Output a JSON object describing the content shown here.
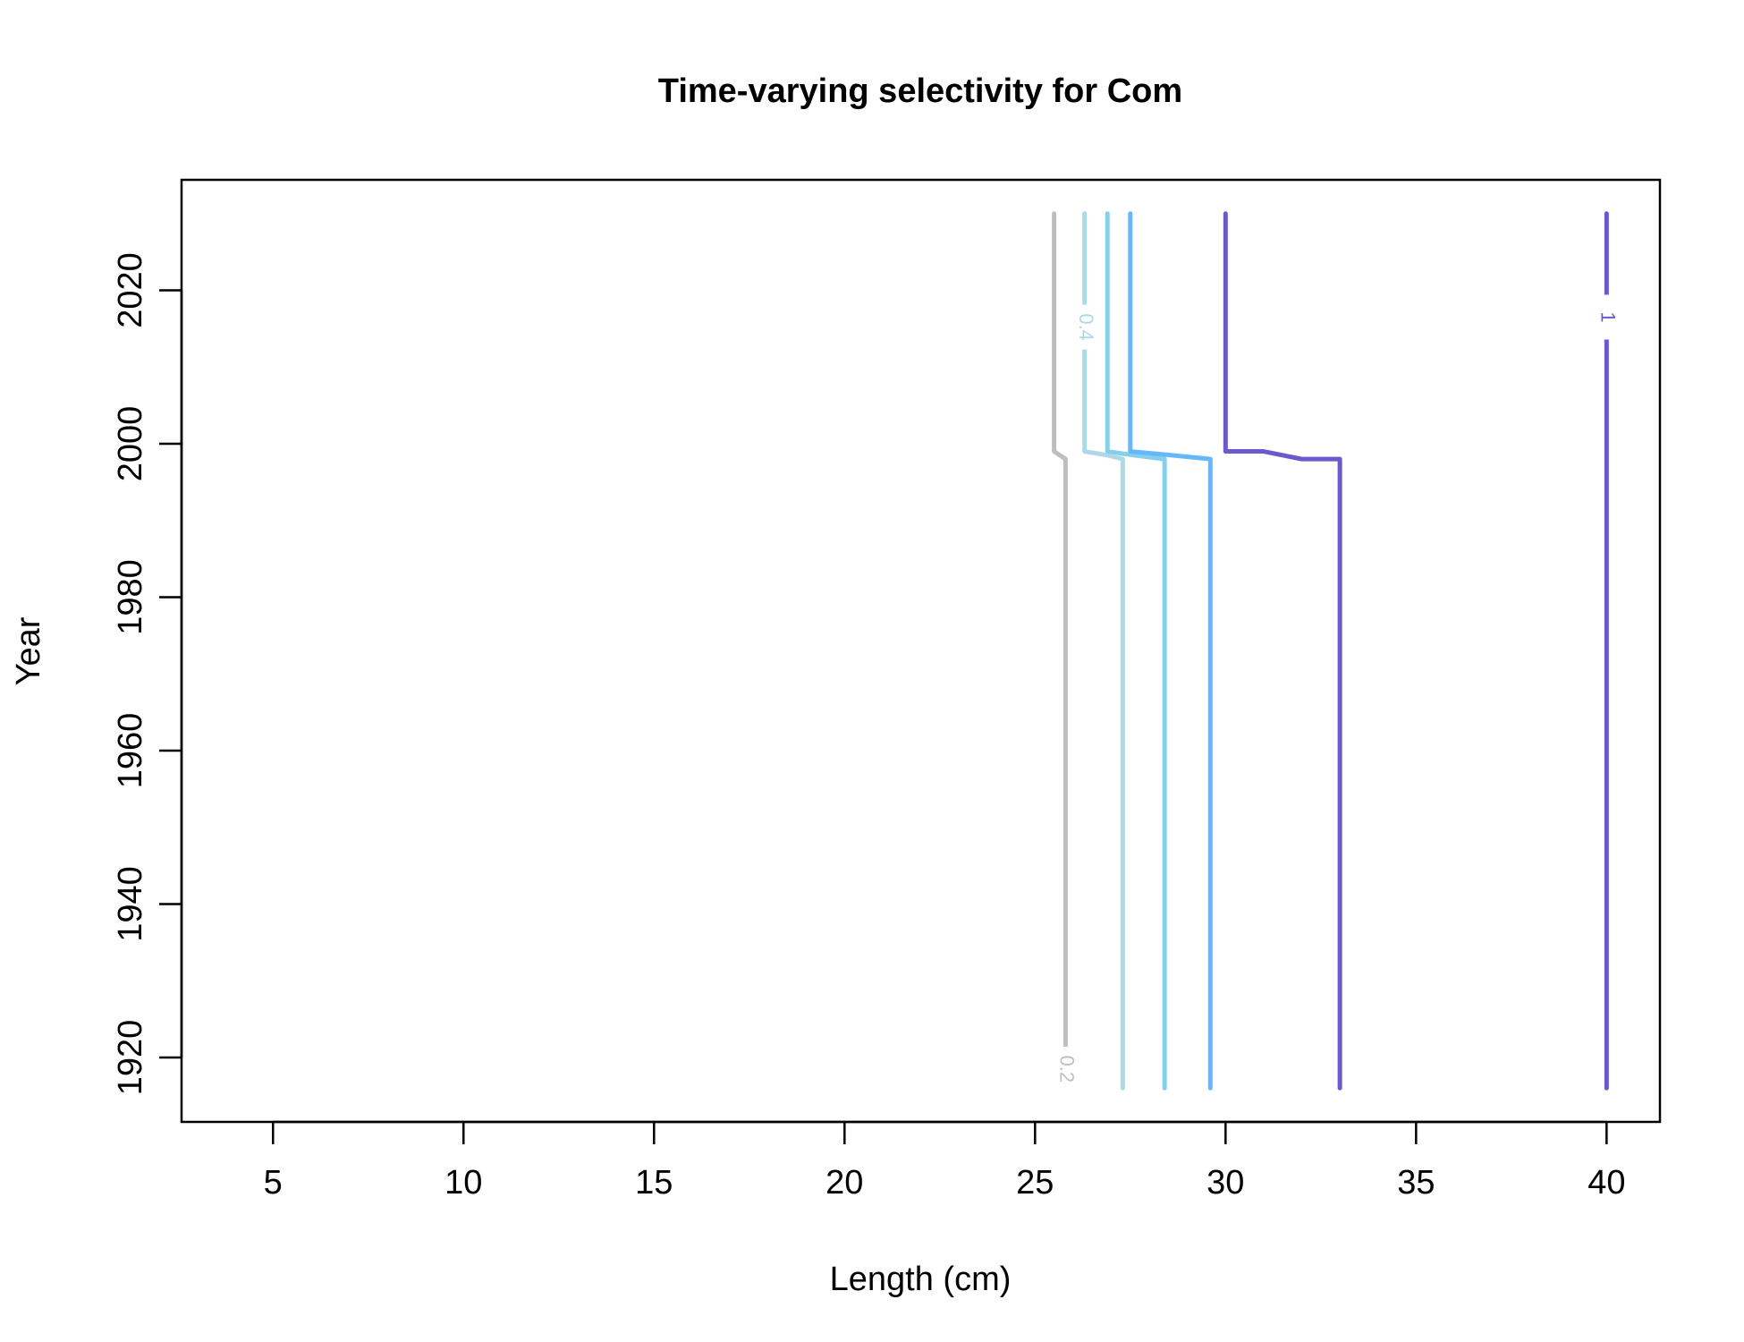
{
  "chart_data": {
    "type": "line",
    "title": "Time-varying selectivity for Com",
    "xlabel": "Length (cm)",
    "ylabel": "Year",
    "xlim": [
      2.6,
      41.4
    ],
    "ylim": [
      1911.6,
      2034.4
    ],
    "x_ticks": [
      5,
      10,
      15,
      20,
      25,
      30,
      35,
      40
    ],
    "y_ticks": [
      1920,
      1940,
      1960,
      1980,
      2000,
      2020
    ],
    "x_tick_labels": [
      "5",
      "10",
      "15",
      "20",
      "25",
      "30",
      "35",
      "40"
    ],
    "y_tick_labels": [
      "1920",
      "1940",
      "1960",
      "1980",
      "2000",
      "2020"
    ],
    "grid": false,
    "legend": "none",
    "series": [
      {
        "level": "0.2",
        "color": "#bebebe",
        "points": [
          [
            25.8,
            1916
          ],
          [
            25.8,
            1998
          ],
          [
            25.5,
            1999
          ],
          [
            25.5,
            2030
          ]
        ],
        "label": "0.2"
      },
      {
        "color": "#add8e6",
        "points": [
          [
            27.3,
            1916
          ],
          [
            27.3,
            1998
          ],
          [
            26.9,
            1998.5
          ],
          [
            26.3,
            1999
          ],
          [
            26.3,
            2030
          ]
        ]
      },
      {
        "level": "0.4",
        "color": "#add8e6",
        "points": [
          [
            27.3,
            2001
          ],
          [
            27.3,
            2001
          ]
        ],
        "label": "0.4",
        "hidden": true
      },
      {
        "color": "#87ceeb",
        "points": [
          [
            28.4,
            1916
          ],
          [
            28.4,
            1998
          ],
          [
            27.6,
            1998.5
          ],
          [
            26.9,
            1999
          ],
          [
            26.9,
            2030
          ]
        ]
      },
      {
        "color": "#63b8ff",
        "points": [
          [
            29.6,
            1916
          ],
          [
            29.6,
            1998
          ],
          [
            28.6,
            1998.5
          ],
          [
            27.5,
            1999
          ],
          [
            27.5,
            2030
          ]
        ]
      },
      {
        "color": "#6a5acd",
        "points": [
          [
            33,
            1916
          ],
          [
            33,
            1998
          ],
          [
            32,
            1998
          ],
          [
            31,
            1999
          ],
          [
            30,
            1999
          ],
          [
            30,
            2030
          ]
        ]
      },
      {
        "level": "1",
        "color": "#6a5acd",
        "points": [
          [
            40,
            1916
          ],
          [
            40,
            2030
          ]
        ],
        "label": "1"
      }
    ],
    "contour_labels": [
      {
        "text": "0.2",
        "x": 25.8,
        "y": 1918.5,
        "color": "#bebebe"
      },
      {
        "text": "0.4",
        "x": 26.3,
        "y": 2015.2,
        "color": "#add8e6"
      },
      {
        "text": "1",
        "x": 40,
        "y": 2016.5,
        "color": "#6a5acd"
      }
    ]
  }
}
